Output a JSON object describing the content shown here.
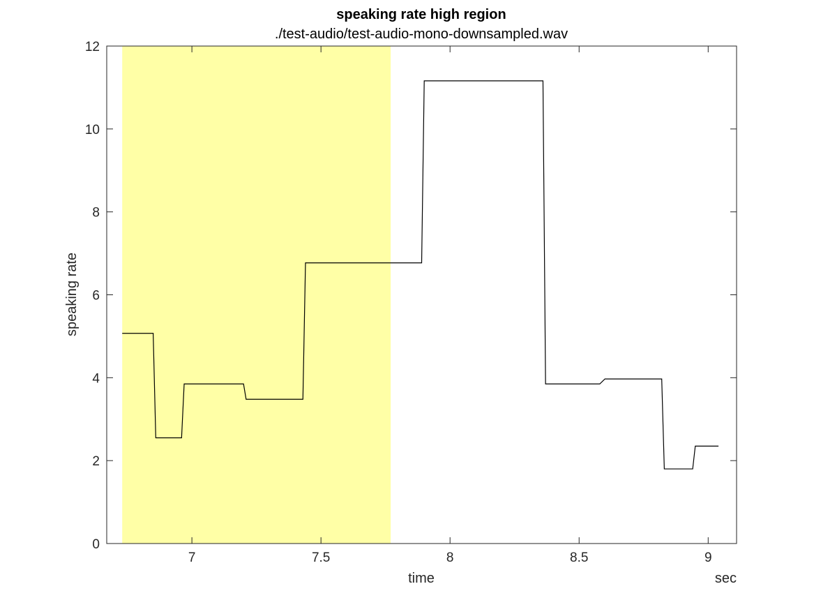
{
  "chart_data": {
    "type": "line",
    "title": "speaking rate high region",
    "subtitle": "./test-audio/test-audio-mono-downsampled.wav",
    "xlabel": "time",
    "xunit": "sec",
    "ylabel": "speaking rate",
    "xlim": [
      6.67,
      9.11
    ],
    "ylim": [
      0,
      12
    ],
    "xticks": [
      7,
      7.5,
      8,
      8.5,
      9
    ],
    "xtick_labels": [
      "7",
      "7.5",
      "8",
      "8.5",
      "9"
    ],
    "yticks": [
      0,
      2,
      4,
      6,
      8,
      10,
      12
    ],
    "ytick_labels": [
      "0",
      "2",
      "4",
      "6",
      "8",
      "10",
      "12"
    ],
    "grid": false,
    "highlight_region": {
      "x_start": 6.73,
      "x_end": 7.77,
      "color": "#ffffa6"
    },
    "line_color": "#000000",
    "series": [
      {
        "x": [
          6.73,
          6.85,
          6.86,
          6.96,
          6.97,
          7.2,
          7.21,
          7.43,
          7.44,
          7.77,
          7.89,
          7.9,
          8.36,
          8.37,
          8.58,
          8.6,
          8.82,
          8.83,
          8.94,
          8.95,
          9.04
        ],
        "y": [
          5.07,
          5.07,
          2.55,
          2.55,
          3.85,
          3.85,
          3.48,
          3.48,
          6.77,
          6.77,
          6.77,
          11.16,
          11.16,
          3.85,
          3.85,
          3.97,
          3.97,
          1.8,
          1.8,
          2.35,
          2.35
        ]
      }
    ]
  }
}
